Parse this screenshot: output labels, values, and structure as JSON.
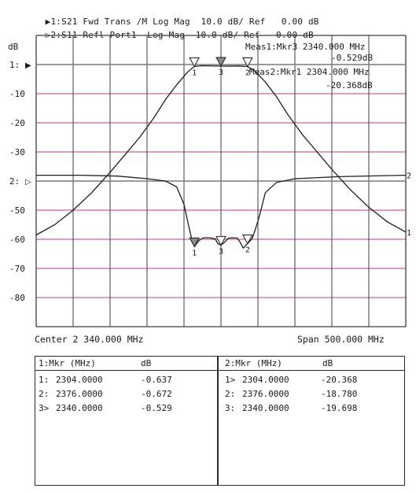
{
  "header": {
    "trace1": {
      "marker": "▶",
      "text": "1:S21 Fwd Trans /M Log Mag  10.0 dB/ Ref   0.00 dB"
    },
    "trace2": {
      "marker": "▷",
      "text": "2:S11 Refl Port1  Log Mag  10.0 dB/ Ref   0.00 dB"
    }
  },
  "readouts": {
    "meas1_line1": "Meas1:Mkr3 2340.000 MHz",
    "meas1_line2": "-0.529dB",
    "meas2_line1": "Meas2:Mkr1 2304.000 MHz",
    "meas2_line2": "-20.368dB"
  },
  "footer": {
    "center": "Center 2 340.000 MHz",
    "span": "Span 500.000 MHz"
  },
  "chart_data": {
    "type": "line",
    "x_unit": "MHz",
    "ylabel": "dB",
    "x_range": [
      2090,
      2590
    ],
    "ylim": [
      -90,
      10
    ],
    "grid": true,
    "y_ticks": [
      {
        "value": 0,
        "label": "1:",
        "ref_marker": "▶"
      },
      {
        "value": -10,
        "label": "-10"
      },
      {
        "value": -20,
        "label": "-20"
      },
      {
        "value": -30,
        "label": "-30"
      },
      {
        "value": -40,
        "label": "2:",
        "ref_marker": "▷"
      },
      {
        "value": -50,
        "label": "-50"
      },
      {
        "value": -60,
        "label": "-60"
      },
      {
        "value": -70,
        "label": "-70"
      },
      {
        "value": -80,
        "label": "-80"
      }
    ],
    "series": [
      {
        "end_label": "1",
        "x": [
          2090,
          2115,
          2140,
          2165,
          2190,
          2210,
          2230,
          2250,
          2265,
          2280,
          2295,
          2304,
          2315,
          2340,
          2365,
          2376,
          2385,
          2400,
          2415,
          2430,
          2450,
          2470,
          2490,
          2515,
          2540,
          2565,
          2590
        ],
        "y": [
          -58.5,
          -55,
          -50,
          -44,
          -37,
          -31,
          -25,
          -18,
          -12,
          -7,
          -2.5,
          -0.64,
          -0.4,
          -0.53,
          -0.5,
          -0.67,
          -2,
          -6,
          -11,
          -17,
          -24,
          -30,
          -36,
          -43,
          -49,
          -54,
          -57.5
        ]
      },
      {
        "end_label": "2",
        "x": [
          2090,
          2150,
          2200,
          2240,
          2265,
          2280,
          2290,
          2296,
          2300,
          2304,
          2310,
          2316,
          2320,
          2325,
          2332,
          2336,
          2340,
          2344,
          2350,
          2356,
          2362,
          2366,
          2370,
          2376,
          2382,
          2386,
          2392,
          2400,
          2415,
          2440,
          2500,
          2590
        ],
        "y": [
          -38,
          -38,
          -38.3,
          -39.2,
          -40,
          -42,
          -48,
          -55,
          -59.5,
          -62.5,
          -60.5,
          -59.5,
          -59.5,
          -59.5,
          -59.8,
          -61.5,
          -62,
          -61.2,
          -59.6,
          -59.5,
          -59.6,
          -61,
          -63,
          -61.5,
          -59.8,
          -57,
          -52,
          -44,
          -40.5,
          -39.2,
          -38.5,
          -38
        ]
      }
    ],
    "markers": [
      {
        "series": 0,
        "label": "1",
        "x": 2304,
        "y": -0.637,
        "active": false
      },
      {
        "series": 0,
        "label": "2",
        "x": 2376,
        "y": -0.672,
        "active": false
      },
      {
        "series": 0,
        "label": "3",
        "x": 2340,
        "y": -0.529,
        "active": true
      },
      {
        "series": 1,
        "label": "1",
        "x": 2304,
        "y": -20.368,
        "active": true
      },
      {
        "series": 1,
        "label": "2",
        "x": 2376,
        "y": -18.78,
        "active": false
      },
      {
        "series": 1,
        "label": "3",
        "x": 2340,
        "y": -19.698,
        "active": false
      }
    ]
  },
  "tables": [
    {
      "title": "1:Mkr (MHz)",
      "unit": "dB",
      "rows": [
        {
          "id": "1:",
          "freq": "2304.0000",
          "value": "-0.637"
        },
        {
          "id": "2:",
          "freq": "2376.0000",
          "value": "-0.672"
        },
        {
          "id": "3>",
          "freq": "2340.0000",
          "value": "-0.529"
        }
      ]
    },
    {
      "title": "2:Mkr (MHz)",
      "unit": "dB",
      "rows": [
        {
          "id": "1>",
          "freq": "2304.0000",
          "value": "-20.368"
        },
        {
          "id": "2:",
          "freq": "2376.0000",
          "value": "-18.780"
        },
        {
          "id": "3:",
          "freq": "2340.0000",
          "value": "-19.698"
        }
      ]
    }
  ],
  "colors": {
    "trace": "#1e1e1e",
    "grid_vertical": "#3c3c3c",
    "grid_horizontal": "#c23a8e",
    "ref_line": "#7a7a7a",
    "text": "#1a1a1a"
  }
}
